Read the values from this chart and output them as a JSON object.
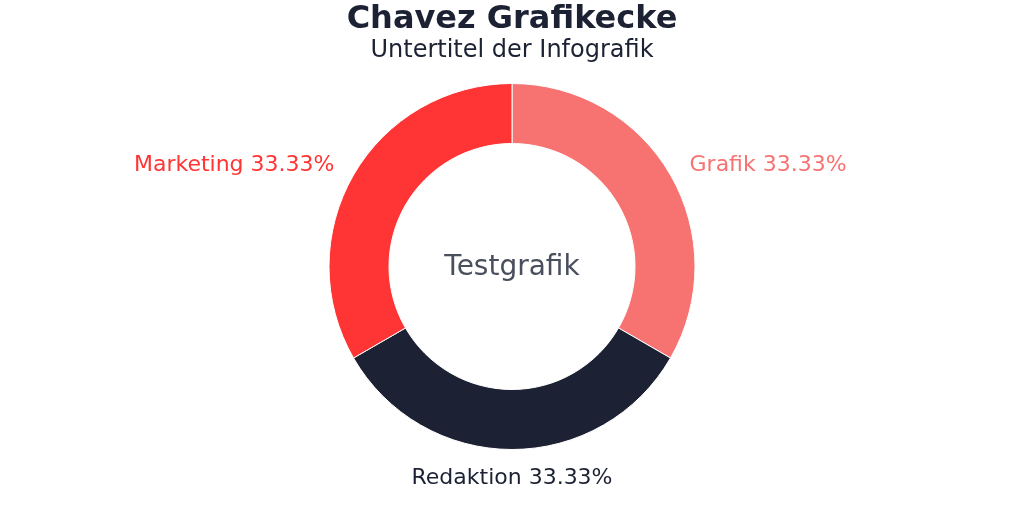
{
  "chart_data": {
    "type": "donut",
    "title": "Chavez Grafikecke",
    "subtitle": "Untertitel der Infografik",
    "categories": [
      "Grafik",
      "Redaktion",
      "Marketing"
    ],
    "values": [
      33.33,
      33.33,
      33.33
    ],
    "colors": [
      "#f77372",
      "#1c2133",
      "#ff3535"
    ],
    "value_labels": [
      "33.33%",
      "33.33%",
      "33.33%"
    ],
    "annotations": [
      "Testgrafik"
    ],
    "legend": false
  }
}
